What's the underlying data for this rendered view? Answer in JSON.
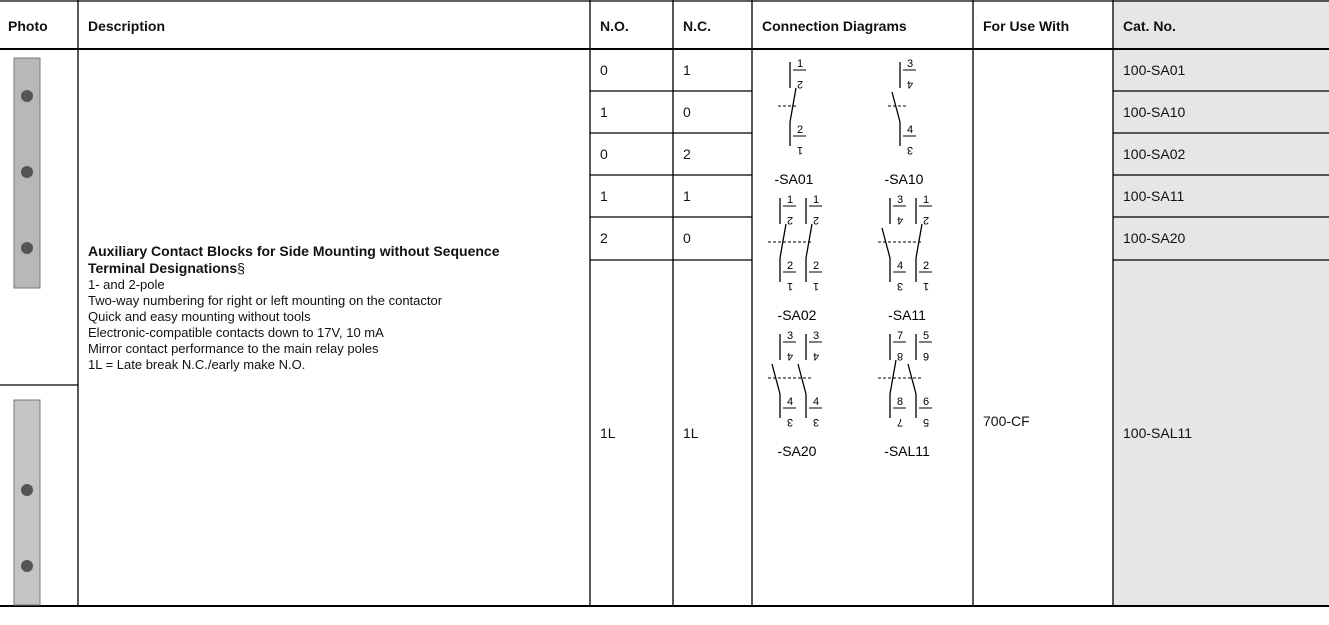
{
  "table": {
    "headers": [
      "Photo",
      "Description",
      "N.O.",
      "N.C.",
      "Connection Diagrams",
      "For Use With",
      "Cat. No."
    ],
    "description": {
      "title": "Auxiliary Contact Blocks for Side Mounting without Sequence Terminal Designations",
      "mark": "§",
      "lines": [
        "1- and 2-pole",
        "Two-way numbering for right or left mounting on the contactor",
        "Quick and easy mounting without tools",
        "Electronic-compatible contacts down to 17V, 10 mA",
        "Mirror contact performance to the main relay poles",
        "1L = Late break N.C./early make N.O."
      ]
    },
    "rows": [
      [
        "0",
        "1",
        "100-SA01"
      ],
      [
        "1",
        "0",
        "100-SA10"
      ],
      [
        "0",
        "2",
        "100-SA02"
      ],
      [
        "1",
        "1",
        "100-SA11"
      ],
      [
        "2",
        "0",
        "100-SA20"
      ],
      [
        "1L",
        "1L",
        "100-SAL11"
      ]
    ],
    "for_use_with": "700-CF",
    "diagrams": [
      {
        "caption": "-SA01",
        "poles": [
          {
            "kind": "NC",
            "top": "1",
            "top_alt": "2",
            "bottom": "2",
            "bottom_alt": "1"
          }
        ]
      },
      {
        "caption": "-SA10",
        "poles": [
          {
            "kind": "NO",
            "top": "3",
            "top_alt": "4",
            "bottom": "4",
            "bottom_alt": "3"
          }
        ]
      },
      {
        "caption": "-SA02",
        "poles": [
          {
            "kind": "NC",
            "top": "1",
            "top_alt": "2",
            "bottom": "2",
            "bottom_alt": "1"
          },
          {
            "kind": "NC",
            "top": "1",
            "top_alt": "2",
            "bottom": "2",
            "bottom_alt": "1"
          }
        ]
      },
      {
        "caption": "-SA11",
        "poles": [
          {
            "kind": "NO",
            "top": "3",
            "top_alt": "4",
            "bottom": "4",
            "bottom_alt": "3"
          },
          {
            "kind": "NC",
            "top": "1",
            "top_alt": "2",
            "bottom": "2",
            "bottom_alt": "1"
          }
        ]
      },
      {
        "caption": "-SA20",
        "poles": [
          {
            "kind": "NO",
            "top": "3",
            "top_alt": "4",
            "bottom": "4",
            "bottom_alt": "3"
          },
          {
            "kind": "NO",
            "top": "3",
            "top_alt": "4",
            "bottom": "4",
            "bottom_alt": "3"
          }
        ]
      },
      {
        "caption": "-SAL11",
        "poles": [
          {
            "kind": "NC",
            "top": "7",
            "top_alt": "8",
            "bottom": "8",
            "bottom_alt": "7"
          },
          {
            "kind": "NO",
            "top": "5",
            "top_alt": "6",
            "bottom": "6",
            "bottom_alt": "5"
          }
        ]
      }
    ]
  }
}
